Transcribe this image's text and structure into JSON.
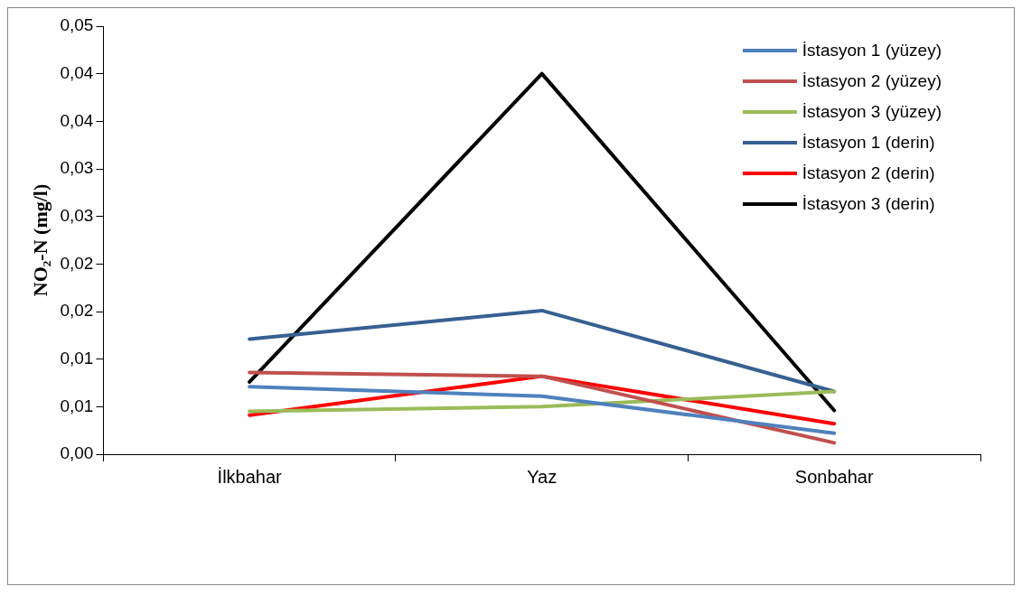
{
  "chart_data": {
    "type": "line",
    "ylabel": "NO₂-N (mg/l)",
    "categories": [
      "İlkbahar",
      "Yaz",
      "Sonbahar"
    ],
    "series": [
      {
        "name": "İstasyon 1 (yüzey)",
        "color": "#4f81bd",
        "values": [
          0.0071,
          0.0061,
          0.0022
        ]
      },
      {
        "name": "İstasyon 2 (yüzey)",
        "color": "#c0504d",
        "values": [
          0.0086,
          0.0082,
          0.0012
        ]
      },
      {
        "name": "İstasyon 3 (yüzey)",
        "color": "#9bbb59",
        "values": [
          0.0045,
          0.005,
          0.0066
        ]
      },
      {
        "name": "İstasyon 1 (derin)",
        "color": "#376092",
        "values": [
          0.0121,
          0.0151,
          0.0066
        ]
      },
      {
        "name": "İstasyon 2 (derin)",
        "color": "#ff0000",
        "values": [
          0.0041,
          0.0082,
          0.0032
        ]
      },
      {
        "name": "İstasyon 3 (derin)",
        "color": "#000000",
        "values": [
          0.0076,
          0.04,
          0.0046
        ]
      }
    ],
    "ylim": [
      0,
      0.045
    ],
    "yticks": [
      {
        "value": 0,
        "label": "0,00"
      },
      {
        "value": 0.005,
        "label": "0,01"
      },
      {
        "value": 0.01,
        "label": "0,01"
      },
      {
        "value": 0.015,
        "label": "0,02"
      },
      {
        "value": 0.02,
        "label": "0,02"
      },
      {
        "value": 0.025,
        "label": "0,03"
      },
      {
        "value": 0.03,
        "label": "0,03"
      },
      {
        "value": 0.035,
        "label": "0,04"
      },
      {
        "value": 0.04,
        "label": "0,04"
      },
      {
        "value": 0.045,
        "label": "0,05"
      }
    ],
    "grid": false,
    "legend": "top right",
    "marker": "none",
    "line_style": "solid"
  }
}
